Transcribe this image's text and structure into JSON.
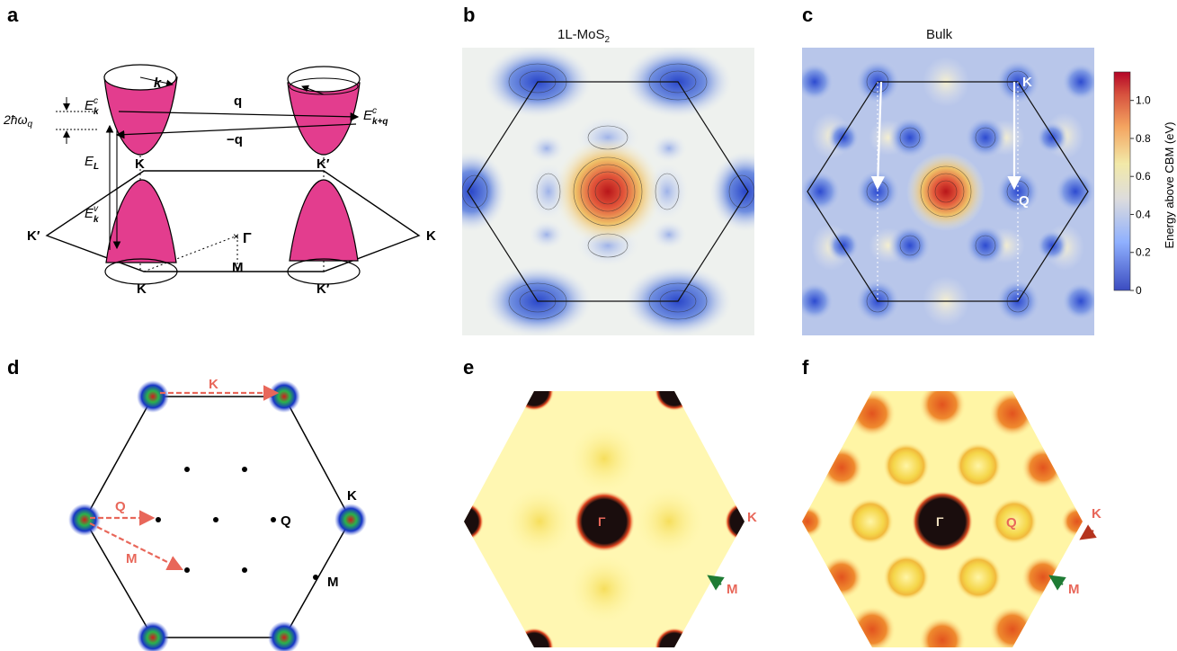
{
  "panels": {
    "a": {
      "letter": "a",
      "labels": {
        "k": "k",
        "q": "q",
        "neg_q": "−q",
        "hbar": "2ħω",
        "hbar_sub": "q",
        "Ekc": "E",
        "Ekc_sup": "c",
        "Ekc_sub": "k",
        "Ekqc": "E",
        "Ekqc_sup": "c",
        "Ekqc_sub": "k+q",
        "EL": "E",
        "EL_sub": "L",
        "Ekv": "E",
        "Ekv_sup": "v",
        "Ekv_sub": "k",
        "K_top": "K",
        "Kp_top": "K′",
        "Kp_left": "K′",
        "K_right": "K",
        "Gamma": "Γ",
        "M": "M",
        "K_bottom": "K",
        "Kp_bottom": "K′"
      }
    },
    "b": {
      "letter": "b",
      "title": "1L-MoS",
      "title_sub": "2"
    },
    "c": {
      "letter": "c",
      "title": "Bulk",
      "label_K": "K",
      "label_Q": "Q",
      "colorbar": {
        "label": "Energy above CBM (eV)",
        "ticks": [
          "0",
          "0.2",
          "0.4",
          "0.6",
          "0.8",
          "1.0"
        ],
        "colors": [
          "#3b4cc0",
          "#8fb0fe",
          "#dddcdc",
          "#f2e9a8",
          "#f4a460",
          "#d6503e",
          "#b40426"
        ]
      }
    },
    "d": {
      "letter": "d",
      "label_K_arrow": "K",
      "label_Q_arrow": "Q",
      "label_M_arrow": "M",
      "label_K": "K",
      "label_Q": "Q",
      "label_M": "M"
    },
    "e": {
      "letter": "e",
      "label_Gamma": "Γ",
      "label_K": "K",
      "label_M": "M"
    },
    "f": {
      "letter": "f",
      "label_Gamma": "Γ",
      "label_Q": "Q",
      "label_K": "K",
      "label_M": "M"
    }
  },
  "colors": {
    "magenta": "#e33d8e",
    "arrow_red": "#e8675a",
    "arrow_green": "#1e7b34",
    "arrow_darkred": "#b5341f"
  }
}
